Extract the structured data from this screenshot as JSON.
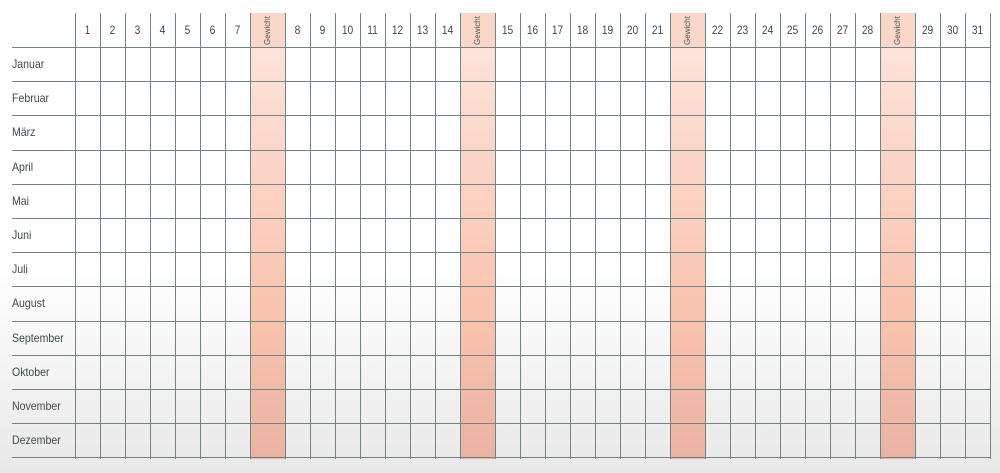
{
  "days_row_1": [
    "1",
    "2",
    "3",
    "4",
    "5",
    "6",
    "7"
  ],
  "days_row_2": [
    "8",
    "9",
    "10",
    "11",
    "12",
    "13",
    "14"
  ],
  "days_row_3": [
    "15",
    "16",
    "17",
    "18",
    "19",
    "20",
    "21"
  ],
  "days_row_4": [
    "22",
    "23",
    "24",
    "25",
    "26",
    "27",
    "28"
  ],
  "days_row_5": [
    "29",
    "30",
    "31"
  ],
  "weight_label": "Gewicht",
  "months": [
    "Januar",
    "Februar",
    "März",
    "April",
    "Mai",
    "Juni",
    "Juli",
    "August",
    "September",
    "Oktober",
    "November",
    "Dezember"
  ],
  "band_color": "#f9c2ad",
  "grid_color": "#6f8483"
}
